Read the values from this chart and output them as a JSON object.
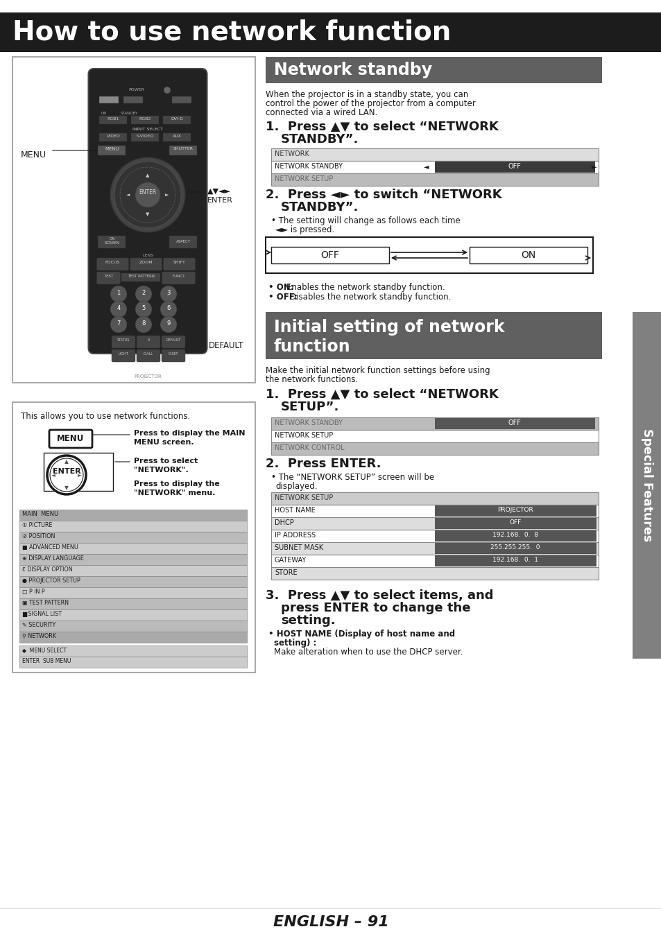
{
  "page_bg": "#ffffff",
  "header_bg": "#1c1c1c",
  "header_text": "How to use network function",
  "header_text_color": "#ffffff",
  "section1_header_bg": "#606060",
  "section1_header_text": "Network standby",
  "section2_header_bg": "#606060",
  "section2_header_text_line1": "Initial setting of network",
  "section2_header_text_line2": "function",
  "sidebar_bg": "#808080",
  "sidebar_text": "Special Features",
  "footer_text": "ENGLISH – 91",
  "body_text_color": "#1a1a1a",
  "remote_body_color": "#222222",
  "remote_border_color": "#111111"
}
